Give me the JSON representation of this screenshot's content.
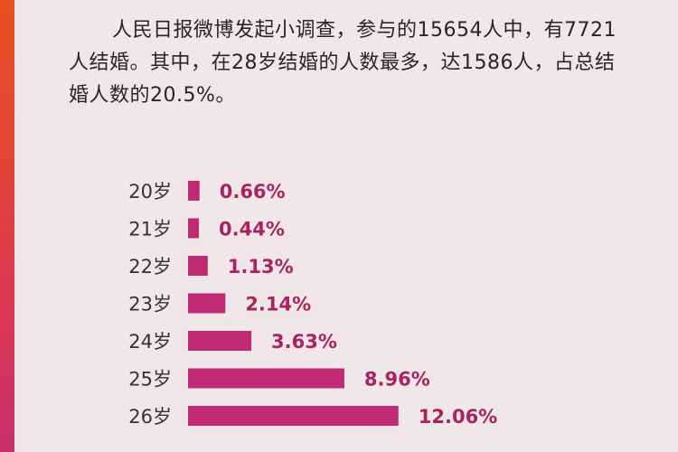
{
  "intro": {
    "text": "人民日报微博发起小调查，参与的15654人中，有7721人结婚。其中，在28岁结婚的人数最多，达1586人，占总结婚人数的20.5%。"
  },
  "colors": {
    "bar": "#c02a72",
    "label": "#a8235f",
    "strip_top": "#e8501f",
    "strip_bottom": "#c8306e",
    "background": "#f1e7e9"
  },
  "chart_data": {
    "type": "bar",
    "orientation": "horizontal",
    "categories": [
      "20岁",
      "21岁",
      "22岁",
      "23岁",
      "24岁",
      "25岁",
      "26岁"
    ],
    "values": [
      0.66,
      0.44,
      1.13,
      2.14,
      3.63,
      8.96,
      12.06
    ],
    "labels": [
      "0.66%",
      "0.44%",
      "1.13%",
      "2.14%",
      "3.63%",
      "8.96%",
      "12.06%"
    ],
    "title": "",
    "xlabel": "",
    "ylabel": "",
    "grid": false,
    "legend": "none"
  }
}
